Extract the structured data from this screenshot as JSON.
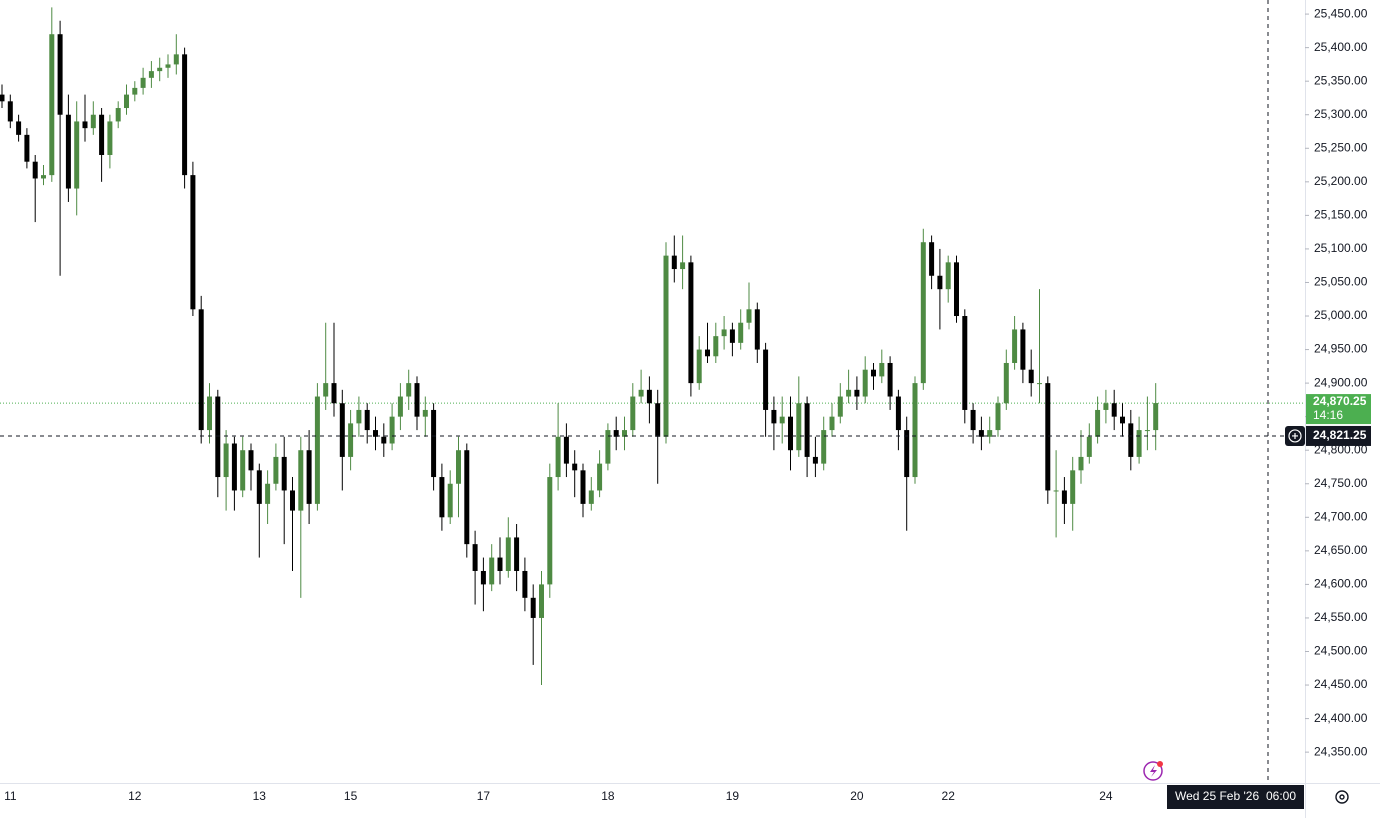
{
  "chart_data": {
    "type": "candlestick",
    "ylim": [
      24304,
      25471
    ],
    "yticks": [
      {
        "value": 24350,
        "label": "24,350.00"
      },
      {
        "value": 24400,
        "label": "24,400.00"
      },
      {
        "value": 24450,
        "label": "24,450.00"
      },
      {
        "value": 24500,
        "label": "24,500.00"
      },
      {
        "value": 24550,
        "label": "24,550.00"
      },
      {
        "value": 24600,
        "label": "24,600.00"
      },
      {
        "value": 24650,
        "label": "24,650.00"
      },
      {
        "value": 24700,
        "label": "24,700.00"
      },
      {
        "value": 24750,
        "label": "24,750.00"
      },
      {
        "value": 24800,
        "label": "24,800.00"
      },
      {
        "value": 24850,
        "label": "24,850.00"
      },
      {
        "value": 24900,
        "label": "24,900.00"
      },
      {
        "value": 24950,
        "label": "24,950.00"
      },
      {
        "value": 25000,
        "label": "25,000.00"
      },
      {
        "value": 25050,
        "label": "25,050.00"
      },
      {
        "value": 25100,
        "label": "25,100.00"
      },
      {
        "value": 25150,
        "label": "25,150.00"
      },
      {
        "value": 25200,
        "label": "25,200.00"
      },
      {
        "value": 25250,
        "label": "25,250.00"
      },
      {
        "value": 25300,
        "label": "25,300.00"
      },
      {
        "value": 25350,
        "label": "25,350.00"
      },
      {
        "value": 25400,
        "label": "25,400.00"
      },
      {
        "value": 25450,
        "label": "25,450.00"
      }
    ],
    "up_color": "#4e8a43",
    "down_color": "#000000",
    "categories": [
      null,
      "11",
      null,
      null,
      null,
      null,
      null,
      null,
      null,
      null,
      null,
      null,
      null,
      null,
      null,
      null,
      "12",
      null,
      null,
      null,
      null,
      null,
      null,
      null,
      null,
      null,
      null,
      null,
      null,
      null,
      null,
      "13",
      null,
      null,
      null,
      null,
      null,
      null,
      null,
      null,
      null,
      null,
      "15",
      null,
      null,
      null,
      null,
      null,
      null,
      null,
      null,
      null,
      null,
      null,
      null,
      null,
      null,
      null,
      "17",
      null,
      null,
      null,
      null,
      null,
      null,
      null,
      null,
      null,
      null,
      null,
      null,
      null,
      null,
      "18",
      null,
      null,
      null,
      null,
      null,
      null,
      null,
      null,
      null,
      null,
      null,
      null,
      null,
      null,
      "19",
      null,
      null,
      null,
      null,
      null,
      null,
      null,
      null,
      null,
      null,
      null,
      null,
      null,
      null,
      "20",
      null,
      null,
      null,
      null,
      null,
      null,
      null,
      null,
      null,
      null,
      "22",
      null,
      null,
      null,
      null,
      null,
      null,
      null,
      null,
      null,
      null,
      null,
      null,
      null,
      null,
      null,
      null,
      null,
      null,
      "24",
      null,
      null,
      null,
      null,
      null,
      null
    ],
    "ohlc": [
      [
        25330,
        25345,
        25310,
        25320
      ],
      [
        25320,
        25330,
        25280,
        25290
      ],
      [
        25290,
        25300,
        25260,
        25270
      ],
      [
        25270,
        25280,
        25220,
        25230
      ],
      [
        25230,
        25240,
        25140,
        25205
      ],
      [
        25205,
        25225,
        25195,
        25210
      ],
      [
        25210,
        25460,
        25200,
        25420
      ],
      [
        25420,
        25440,
        25060,
        25300
      ],
      [
        25300,
        25330,
        25170,
        25190
      ],
      [
        25190,
        25320,
        25150,
        25290
      ],
      [
        25290,
        25330,
        25260,
        25280
      ],
      [
        25280,
        25320,
        25270,
        25300
      ],
      [
        25300,
        25310,
        25200,
        25240
      ],
      [
        25240,
        25300,
        25220,
        25290
      ],
      [
        25290,
        25320,
        25280,
        25310
      ],
      [
        25310,
        25345,
        25300,
        25330
      ],
      [
        25330,
        25350,
        25320,
        25340
      ],
      [
        25340,
        25370,
        25330,
        25355
      ],
      [
        25355,
        25380,
        25340,
        25365
      ],
      [
        25365,
        25385,
        25350,
        25370
      ],
      [
        25370,
        25390,
        25355,
        25375
      ],
      [
        25375,
        25420,
        25360,
        25390
      ],
      [
        25390,
        25400,
        25190,
        25210
      ],
      [
        25210,
        25230,
        25000,
        25010
      ],
      [
        25010,
        25030,
        24810,
        24830
      ],
      [
        24830,
        24900,
        24810,
        24880
      ],
      [
        24880,
        24890,
        24730,
        24760
      ],
      [
        24760,
        24830,
        24710,
        24810
      ],
      [
        24810,
        24820,
        24710,
        24740
      ],
      [
        24740,
        24820,
        24730,
        24800
      ],
      [
        24800,
        24810,
        24740,
        24770
      ],
      [
        24770,
        24780,
        24640,
        24720
      ],
      [
        24720,
        24770,
        24690,
        24750
      ],
      [
        24750,
        24810,
        24740,
        24790
      ],
      [
        24790,
        24820,
        24660,
        24740
      ],
      [
        24740,
        24760,
        24620,
        24710
      ],
      [
        24710,
        24820,
        24580,
        24800
      ],
      [
        24800,
        24830,
        24690,
        24720
      ],
      [
        24720,
        24900,
        24710,
        24880
      ],
      [
        24880,
        24990,
        24860,
        24900
      ],
      [
        24900,
        24990,
        24850,
        24870
      ],
      [
        24870,
        24890,
        24740,
        24790
      ],
      [
        24790,
        24860,
        24770,
        24840
      ],
      [
        24840,
        24880,
        24820,
        24860
      ],
      [
        24860,
        24870,
        24810,
        24830
      ],
      [
        24830,
        24850,
        24800,
        24820
      ],
      [
        24820,
        24840,
        24790,
        24810
      ],
      [
        24810,
        24870,
        24800,
        24850
      ],
      [
        24850,
        24900,
        24830,
        24880
      ],
      [
        24880,
        24920,
        24860,
        24900
      ],
      [
        24900,
        24910,
        24830,
        24850
      ],
      [
        24850,
        24880,
        24820,
        24860
      ],
      [
        24860,
        24870,
        24740,
        24760
      ],
      [
        24760,
        24780,
        24680,
        24700
      ],
      [
        24700,
        24770,
        24690,
        24750
      ],
      [
        24750,
        24820,
        24700,
        24800
      ],
      [
        24800,
        24810,
        24640,
        24660
      ],
      [
        24660,
        24680,
        24570,
        24620
      ],
      [
        24620,
        24640,
        24560,
        24600
      ],
      [
        24600,
        24660,
        24590,
        24640
      ],
      [
        24640,
        24670,
        24600,
        24620
      ],
      [
        24620,
        24700,
        24610,
        24670
      ],
      [
        24670,
        24690,
        24590,
        24620
      ],
      [
        24620,
        24640,
        24560,
        24580
      ],
      [
        24580,
        24600,
        24480,
        24550
      ],
      [
        24550,
        24620,
        24450,
        24600
      ],
      [
        24600,
        24780,
        24580,
        24760
      ],
      [
        24760,
        24870,
        24740,
        24820
      ],
      [
        24820,
        24840,
        24760,
        24780
      ],
      [
        24780,
        24800,
        24730,
        24770
      ],
      [
        24770,
        24780,
        24700,
        24720
      ],
      [
        24720,
        24760,
        24710,
        24740
      ],
      [
        24740,
        24800,
        24730,
        24780
      ],
      [
        24780,
        24840,
        24770,
        24830
      ],
      [
        24830,
        24850,
        24800,
        24820
      ],
      [
        24820,
        24850,
        24800,
        24830
      ],
      [
        24830,
        24900,
        24820,
        24880
      ],
      [
        24880,
        24920,
        24870,
        24890
      ],
      [
        24890,
        24910,
        24840,
        24870
      ],
      [
        24870,
        24890,
        24750,
        24820
      ],
      [
        24820,
        25110,
        24810,
        25090
      ],
      [
        25090,
        25120,
        25050,
        25070
      ],
      [
        25070,
        25120,
        25040,
        25080
      ],
      [
        25080,
        25090,
        24880,
        24900
      ],
      [
        24900,
        24970,
        24890,
        24950
      ],
      [
        24950,
        24990,
        24930,
        24940
      ],
      [
        24940,
        24990,
        24930,
        24970
      ],
      [
        24970,
        25000,
        24950,
        24980
      ],
      [
        24980,
        24990,
        24940,
        24960
      ],
      [
        24960,
        25010,
        24950,
        24990
      ],
      [
        24990,
        25050,
        24980,
        25010
      ],
      [
        25010,
        25020,
        24930,
        24950
      ],
      [
        24950,
        24960,
        24820,
        24860
      ],
      [
        24860,
        24880,
        24800,
        24840
      ],
      [
        24840,
        24880,
        24810,
        24850
      ],
      [
        24850,
        24880,
        24770,
        24800
      ],
      [
        24800,
        24910,
        24790,
        24870
      ],
      [
        24870,
        24880,
        24760,
        24790
      ],
      [
        24790,
        24820,
        24760,
        24780
      ],
      [
        24780,
        24850,
        24770,
        24830
      ],
      [
        24830,
        24870,
        24820,
        24850
      ],
      [
        24850,
        24900,
        24840,
        24880
      ],
      [
        24880,
        24920,
        24870,
        24890
      ],
      [
        24890,
        24910,
        24860,
        24880
      ],
      [
        24880,
        24940,
        24870,
        24920
      ],
      [
        24920,
        24930,
        24890,
        24910
      ],
      [
        24910,
        24950,
        24900,
        24930
      ],
      [
        24930,
        24940,
        24860,
        24880
      ],
      [
        24880,
        24890,
        24800,
        24830
      ],
      [
        24830,
        24850,
        24680,
        24760
      ],
      [
        24760,
        24910,
        24750,
        24900
      ],
      [
        24900,
        25130,
        24890,
        25110
      ],
      [
        25110,
        25120,
        25040,
        25060
      ],
      [
        25060,
        25100,
        24980,
        25040
      ],
      [
        25040,
        25090,
        25020,
        25080
      ],
      [
        25080,
        25090,
        24990,
        25000
      ],
      [
        25000,
        25010,
        24840,
        24860
      ],
      [
        24860,
        24870,
        24810,
        24830
      ],
      [
        24830,
        24850,
        24800,
        24820
      ],
      [
        24820,
        24850,
        24810,
        24830
      ],
      [
        24830,
        24880,
        24820,
        24870
      ],
      [
        24870,
        24950,
        24860,
        24930
      ],
      [
        24930,
        25000,
        24920,
        24980
      ],
      [
        24980,
        24990,
        24900,
        24920
      ],
      [
        24920,
        24950,
        24880,
        24900
      ],
      [
        24900,
        25040,
        24870,
        24900
      ],
      [
        24900,
        24910,
        24720,
        24740
      ],
      [
        24740,
        24800,
        24670,
        24740
      ],
      [
        24740,
        24760,
        24690,
        24720
      ],
      [
        24720,
        24790,
        24680,
        24770
      ],
      [
        24770,
        24830,
        24750,
        24790
      ],
      [
        24790,
        24840,
        24780,
        24820
      ],
      [
        24820,
        24880,
        24810,
        24860
      ],
      [
        24860,
        24890,
        24840,
        24870
      ],
      [
        24870,
        24890,
        24830,
        24850
      ],
      [
        24850,
        24870,
        24820,
        24840
      ],
      [
        24840,
        24860,
        24770,
        24790
      ],
      [
        24790,
        24850,
        24780,
        24830
      ],
      [
        24830,
        24880,
        24800,
        24830
      ],
      [
        24830,
        24900,
        24800,
        24870.25
      ]
    ],
    "last_price": {
      "value": 24870.25,
      "label": "24,870.25"
    },
    "countdown": "14:16",
    "crosshair_price": {
      "value": 24821.25,
      "label": "24,821.25"
    },
    "crosshair_date": "Wed 25 Feb '26",
    "crosshair_time": "06:00"
  }
}
